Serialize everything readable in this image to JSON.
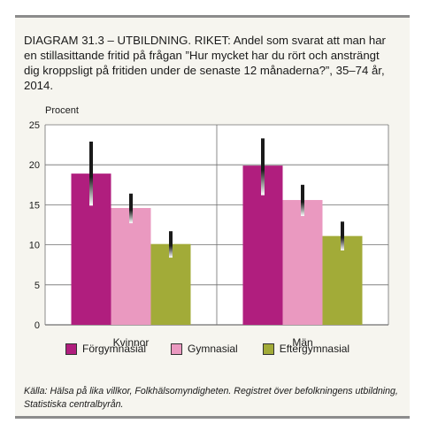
{
  "figure": {
    "title": "DIAGRAM 31.3 – UTBILDNING. RIKET: Andel som svarat att man har en stillasittande fritid på frågan ”Hur mycket har du rört och ansträngt dig kroppsligt på fritiden under de senaste 12 månaderna?”, 35–74 år, 2014.",
    "source": "Källa: Hälsa på lika villkor, Folkhälsomyndigheten. Registret över befolkningens utbildning, Statistiska centralbyrån."
  },
  "chart_data": {
    "type": "bar",
    "title": "",
    "ylabel": "Procent",
    "xlabel": "",
    "ylim": [
      0,
      25
    ],
    "yticks": [
      0,
      5,
      10,
      15,
      20,
      25
    ],
    "grid": true,
    "legend_position": "bottom",
    "categories": [
      "Kvinnor",
      "Män"
    ],
    "series": [
      {
        "name": "Förgymnasial",
        "color": "#b01e7e",
        "values": [
          18.9,
          19.9
        ],
        "ci_low": [
          14.9,
          16.2
        ],
        "ci_high": [
          22.9,
          23.3
        ]
      },
      {
        "name": "Gymnasial",
        "color": "#ea99c0",
        "values": [
          14.6,
          15.6
        ],
        "ci_low": [
          12.7,
          13.6
        ],
        "ci_high": [
          16.4,
          17.5
        ]
      },
      {
        "name": "Eftergymnasial",
        "color": "#a2ab38",
        "values": [
          10.1,
          11.1
        ],
        "ci_low": [
          8.4,
          9.3
        ],
        "ci_high": [
          11.7,
          12.9
        ]
      }
    ]
  }
}
